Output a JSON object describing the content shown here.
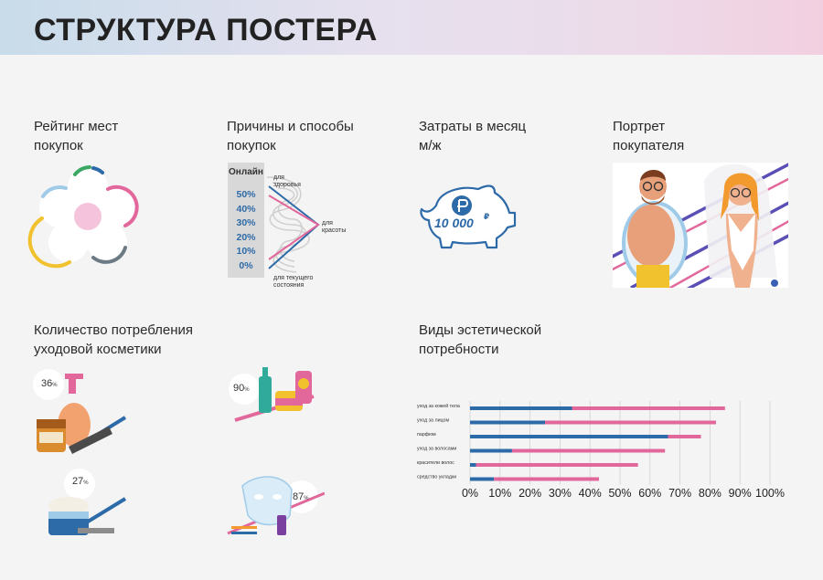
{
  "title": "СТРУКТУРА ПОСТЕРА",
  "sections": {
    "rating": {
      "label": "Рейтинг мест\nпокупок"
    },
    "reasons": {
      "label": "Причины и способы\nпокупок",
      "column_title": "Онлайн",
      "levels": [
        "50%",
        "40%",
        "30%",
        "20%",
        "10%",
        "0%"
      ],
      "reason_top": "для\nздоровья",
      "reason_mid": "для\nкрасоты",
      "reason_bottom": "для текущего\nсостояния"
    },
    "expenses": {
      "label": "Затраты в месяц\nм/ж",
      "amount": "10 000"
    },
    "portrait": {
      "label": "Портрет\nпокупателя"
    },
    "consumption": {
      "label": "Количество потребления\nуходовой косметики",
      "items": [
        {
          "percent": "36",
          "unit": "%"
        },
        {
          "percent": "90",
          "unit": "%"
        },
        {
          "percent": "27",
          "unit": "%"
        },
        {
          "percent": "87",
          "unit": "%"
        }
      ]
    },
    "aesthetic": {
      "label": "Виды эстетической\nпотребности"
    }
  },
  "colors": {
    "blue": "#2d6aa8",
    "pink": "#e2679b",
    "pink_light": "#f5c4dc",
    "green": "#3aa863",
    "yellow": "#f2c12e",
    "gray": "#6b7a83",
    "sky": "#9fcbe8"
  },
  "chart_data": {
    "type": "bar",
    "orientation": "horizontal",
    "stacked": true,
    "categories": [
      "уход за кожей тела",
      "уход за лицом",
      "парфюм",
      "уход за волосами",
      "красители волос",
      "средство укладки"
    ],
    "series": [
      {
        "color": "#2d6aa8",
        "values": [
          34,
          25,
          66,
          14,
          2,
          8
        ]
      },
      {
        "color": "#e2679b",
        "values": [
          51,
          57,
          11,
          51,
          54,
          35
        ]
      }
    ],
    "xticks": [
      "0%",
      "10%",
      "20%",
      "30%",
      "40%",
      "50%",
      "60%",
      "70%",
      "80%",
      "90%",
      "100%"
    ],
    "xlim": [
      0,
      100
    ],
    "grid": true,
    "legend": "none"
  }
}
